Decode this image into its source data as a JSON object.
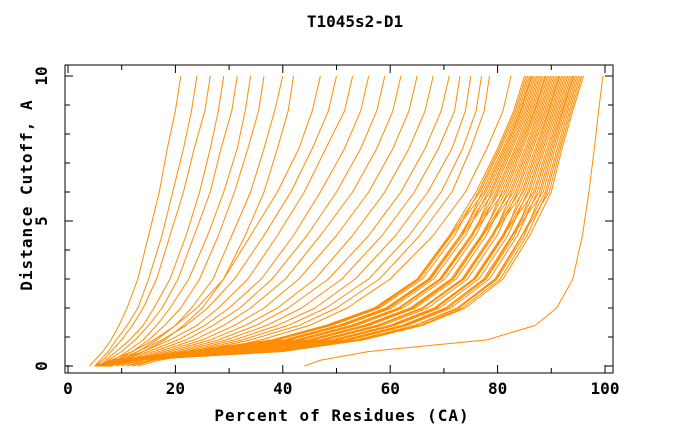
{
  "chart_data": {
    "type": "line",
    "title": "T1045s2-D1",
    "xlabel": "Percent of Residues (CA)",
    "ylabel": "Distance Cutoff, A",
    "xlim": [
      0,
      100
    ],
    "ylim": [
      0,
      10
    ],
    "grid": false,
    "legend": "none",
    "x_ticks_major": [
      0,
      20,
      40,
      60,
      80,
      100
    ],
    "x_ticks_minor": [
      10,
      30,
      50,
      70,
      90
    ],
    "y_ticks_major": [
      0,
      5,
      10
    ],
    "y_ticks_minor": [
      1,
      2,
      3,
      4,
      6,
      7,
      8,
      9
    ],
    "line_color": "#ff8c00",
    "axis_color": "#000000",
    "y_levels": [
      0,
      0.2,
      0.5,
      0.9,
      1.4,
      2,
      3,
      4.5,
      6,
      7.5,
      8.8,
      10
    ],
    "series": [
      [
        4,
        5,
        6.5,
        8,
        9.5,
        11,
        13,
        15,
        17,
        18.5,
        20,
        21
      ],
      [
        5,
        6,
        7.5,
        9,
        11,
        13,
        15,
        17.5,
        19.5,
        21.5,
        23,
        24
      ],
      [
        5,
        6.5,
        8,
        10,
        12,
        14,
        16.5,
        19,
        21.5,
        23.5,
        25.5,
        26.5
      ],
      [
        6,
        7,
        9,
        11.5,
        14,
        16,
        19,
        22,
        24.5,
        26.5,
        28,
        29
      ],
      [
        6,
        7.5,
        10,
        12.5,
        15,
        17.5,
        20.5,
        23.5,
        26.5,
        28.5,
        30.5,
        31.5
      ],
      [
        7,
        8.5,
        11,
        14,
        16.5,
        19,
        22.5,
        26,
        29,
        31.5,
        33,
        34
      ],
      [
        7,
        9,
        12,
        15,
        18,
        21,
        24.5,
        28,
        31,
        33.5,
        35.5,
        36.5
      ],
      [
        8,
        10,
        13,
        16.5,
        20,
        23,
        27,
        30.5,
        34,
        36.5,
        38.5,
        40
      ],
      [
        8,
        10.5,
        14,
        18,
        21.5,
        25,
        29,
        33,
        36.5,
        39,
        41,
        42
      ],
      [
        6,
        8,
        12,
        16,
        20,
        24,
        29,
        34,
        39,
        43,
        45.5,
        47
      ],
      [
        7,
        9,
        13,
        17.5,
        22,
        26,
        31,
        36.5,
        41.5,
        45.5,
        48.5,
        50
      ],
      [
        7,
        9.5,
        14,
        19,
        24,
        28,
        33.5,
        39,
        44,
        48,
        51.5,
        53
      ],
      [
        8,
        10,
        15,
        20.5,
        25.5,
        30,
        36,
        42,
        47,
        51.5,
        54.5,
        56
      ],
      [
        8,
        11,
        16,
        22,
        27,
        32,
        38,
        44.5,
        50,
        54.5,
        57.5,
        59
      ],
      [
        9,
        12,
        17,
        23.5,
        29,
        34,
        40.5,
        47,
        53,
        57.5,
        60.5,
        62
      ],
      [
        9,
        12.5,
        18,
        25,
        31,
        36.5,
        43,
        50,
        56,
        60.5,
        63.5,
        65
      ],
      [
        10,
        13,
        19,
        26.5,
        33,
        39,
        46,
        53,
        59,
        63.5,
        66.5,
        68
      ],
      [
        10,
        13.5,
        20,
        28,
        35,
        41,
        48.5,
        56,
        62,
        66.5,
        69.5,
        71
      ],
      [
        11,
        14,
        21,
        29.5,
        37,
        43.5,
        51,
        58.5,
        64.5,
        69,
        72,
        73
      ],
      [
        11,
        15,
        22,
        31,
        39,
        46,
        53.5,
        61,
        67,
        71.5,
        74,
        75
      ],
      [
        12,
        15.5,
        23,
        32.5,
        41,
        48,
        56,
        63.5,
        69.5,
        73.5,
        76,
        77
      ],
      [
        12,
        16,
        24,
        34,
        43,
        50,
        58,
        65.5,
        71.5,
        75,
        77.5,
        78.5
      ],
      [
        13,
        17,
        26,
        36,
        45,
        52,
        60,
        68,
        74,
        78,
        81,
        82.5
      ],
      [
        5.0,
        8.0,
        22.0,
        38.0,
        48.0,
        57.0,
        65.0,
        71.0,
        76.0,
        80.0,
        83.0,
        85.0
      ],
      [
        5.1,
        8.1,
        23.1,
        39.0,
        49.1,
        58.0,
        66.0,
        72.0,
        76.4,
        80.3,
        83.3,
        85.3
      ],
      [
        5.2,
        8.2,
        22.3,
        38.3,
        48.3,
        57.3,
        65.2,
        71.2,
        76.7,
        80.6,
        83.6,
        85.6
      ],
      [
        5.2,
        8.3,
        24.6,
        40.5,
        50.6,
        59.5,
        67.5,
        73.4,
        77.1,
        81.0,
        83.9,
        85.9
      ],
      [
        5.3,
        8.4,
        22.7,
        38.6,
        48.7,
        57.6,
        65.5,
        71.4,
        77.5,
        81.3,
        84.2,
        86.2
      ],
      [
        5.4,
        8.5,
        24.4,
        40.2,
        50.4,
        59.2,
        67.1,
        73.0,
        77.8,
        81.6,
        84.4,
        86.4
      ],
      [
        5.5,
        8.6,
        25.4,
        41.3,
        51.4,
        60.3,
        68.1,
        74.0,
        78.2,
        81.9,
        84.7,
        86.7
      ],
      [
        5.6,
        8.7,
        24.7,
        40.5,
        50.7,
        59.5,
        67.3,
        73.1,
        78.6,
        82.2,
        85.0,
        87.0
      ],
      [
        5.6,
        8.8,
        27.0,
        42.8,
        53.0,
        61.8,
        69.6,
        75.4,
        78.9,
        82.5,
        85.3,
        87.3
      ],
      [
        5.7,
        8.9,
        25.1,
        40.8,
        51.1,
        59.8,
        67.6,
        73.4,
        79.3,
        82.8,
        85.6,
        87.6
      ],
      [
        5.8,
        9.1,
        26.7,
        42.5,
        52.7,
        61.5,
        69.2,
        75.0,
        79.7,
        83.2,
        85.9,
        87.9
      ],
      [
        5.9,
        9.2,
        27.8,
        43.5,
        53.8,
        62.4,
        70.2,
        75.9,
        80.0,
        83.5,
        86.2,
        88.2
      ],
      [
        5.9,
        9.3,
        26.9,
        42.6,
        52.9,
        61.6,
        69.3,
        75.0,
        80.4,
        83.8,
        86.5,
        88.5
      ],
      [
        6.0,
        9.4,
        29.4,
        45.0,
        55.4,
        64.0,
        71.7,
        77.3,
        80.8,
        84.1,
        86.8,
        88.8
      ],
      [
        6.1,
        9.5,
        27.2,
        42.8,
        53.2,
        61.8,
        69.5,
        75.1,
        81.2,
        84.4,
        87.0,
        89.0
      ],
      [
        6.2,
        9.6,
        29.1,
        44.7,
        55.1,
        63.7,
        71.3,
        76.9,
        81.5,
        84.7,
        87.3,
        89.3
      ],
      [
        6.3,
        9.7,
        30.1,
        45.7,
        56.1,
        64.7,
        72.3,
        77.9,
        81.9,
        85.1,
        87.6,
        89.6
      ],
      [
        6.3,
        9.8,
        29.5,
        45.0,
        55.5,
        64.0,
        71.6,
        77.1,
        82.3,
        85.4,
        87.9,
        89.9
      ],
      [
        6.4,
        9.9,
        31.7,
        47.2,
        57.7,
        66.2,
        73.8,
        79.3,
        82.6,
        85.7,
        88.2,
        90.2
      ],
      [
        6.5,
        10.0,
        29.8,
        45.3,
        55.8,
        64.3,
        71.8,
        77.3,
        83.0,
        86.0,
        88.5,
        90.5
      ],
      [
        6.6,
        10.1,
        31.5,
        46.9,
        57.5,
        65.9,
        73.4,
        78.9,
        83.4,
        86.3,
        88.8,
        90.8
      ],
      [
        6.7,
        10.2,
        32.6,
        48.0,
        58.5,
        67.0,
        74.4,
        79.9,
        83.7,
        86.6,
        89.1,
        91.1
      ],
      [
        6.7,
        10.3,
        31.6,
        47.0,
        57.6,
        66.0,
        73.4,
        78.9,
        84.1,
        87.0,
        89.4,
        91.4
      ],
      [
        6.8,
        10.4,
        34.1,
        49.5,
        60.1,
        68.5,
        75.9,
        81.3,
        84.5,
        87.3,
        89.6,
        91.6
      ],
      [
        6.9,
        10.5,
        31.9,
        47.2,
        57.9,
        66.2,
        73.6,
        79.0,
        84.8,
        87.6,
        89.9,
        91.9
      ],
      [
        7.0,
        10.6,
        33.9,
        49.2,
        59.9,
        68.2,
        75.5,
        80.9,
        85.2,
        87.9,
        90.2,
        92.2
      ],
      [
        7.1,
        10.7,
        34.9,
        50.2,
        60.9,
        69.2,
        76.5,
        81.9,
        85.6,
        88.2,
        90.5,
        92.5
      ],
      [
        7.1,
        10.8,
        34.2,
        49.5,
        60.2,
        68.4,
        75.7,
        81.0,
        85.9,
        88.5,
        90.8,
        92.8
      ],
      [
        7.2,
        10.9,
        36.5,
        51.8,
        62.5,
        70.7,
        77.9,
        83.2,
        86.3,
        88.8,
        91.1,
        93.1
      ],
      [
        7.3,
        11.0,
        34.5,
        49.8,
        60.5,
        68.6,
        75.8,
        81.1,
        86.7,
        89.2,
        91.4,
        93.4
      ],
      [
        7.4,
        11.2,
        36.2,
        51.4,
        62.2,
        70.3,
        77.4,
        82.7,
        87.0,
        89.5,
        91.7,
        93.7
      ],
      [
        7.4,
        11.3,
        37.3,
        52.5,
        63.2,
        71.3,
        78.5,
        83.7,
        87.4,
        89.8,
        92.0,
        94.0
      ],
      [
        7.5,
        11.4,
        36.4,
        51.5,
        62.4,
        70.3,
        77.5,
        82.6,
        87.8,
        90.1,
        92.2,
        94.2
      ],
      [
        7.6,
        11.5,
        38.8,
        54.0,
        64.8,
        72.8,
        79.9,
        85.0,
        88.1,
        90.4,
        92.5,
        94.5
      ],
      [
        7.7,
        11.6,
        36.8,
        51.9,
        62.8,
        70.7,
        77.8,
        82.8,
        88.5,
        90.7,
        92.8,
        94.8
      ],
      [
        7.8,
        11.7,
        38.6,
        53.7,
        64.6,
        72.5,
        79.5,
        84.5,
        88.9,
        91.1,
        93.1,
        95.1
      ],
      [
        7.8,
        11.8,
        39.6,
        54.7,
        65.6,
        73.4,
        80.5,
        85.5,
        89.2,
        91.4,
        93.4,
        95.4
      ],
      [
        7.9,
        11.9,
        38.9,
        54.0,
        64.8,
        72.7,
        79.7,
        84.6,
        89.6,
        91.7,
        93.7,
        95.7
      ],
      [
        8.0,
        12.0,
        40.0,
        55.0,
        66.0,
        74.0,
        81.0,
        86.0,
        90.0,
        92.0,
        94.0,
        96.0
      ],
      [
        44,
        47,
        56,
        78,
        87,
        91,
        94,
        95.8,
        97,
        98,
        98.8,
        99.6
      ]
    ]
  }
}
